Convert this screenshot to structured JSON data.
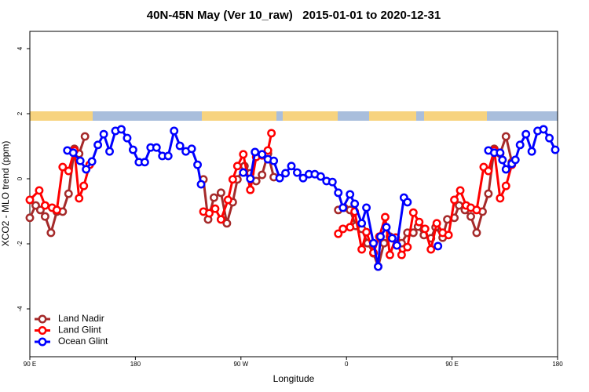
{
  "chart_data": {
    "type": "line",
    "title": "40N-45N May (Ver 10_raw)   2015-01-01 to 2020-12-31",
    "x_label": "Longitude",
    "y_label": "XCO2 - MLO trend (ppm)",
    "xlim": [
      90,
      540
    ],
    "ylim": [
      -5.47,
      4.53
    ],
    "xticks": [
      {
        "value": 90,
        "label": "90 E"
      },
      180,
      {
        "value": 270,
        "label": "90 W"
      },
      {
        "value": 360,
        "label": "0"
      },
      {
        "value": 450,
        "label": "90 E"
      },
      {
        "value": 540,
        "label": "180"
      }
    ],
    "yticks": [
      4,
      2,
      0,
      -2,
      -4
    ],
    "legend": "bottom-left",
    "series": [
      {
        "name": "Land Nadir",
        "color": "#a52a2a",
        "x": [
          90,
          95,
          99,
          103,
          108,
          113,
          118,
          123,
          128,
          132,
          137,
          null,
          238,
          242,
          247,
          253,
          258,
          263,
          267,
          273,
          278,
          283,
          288,
          293,
          298,
          null,
          353,
          358,
          363,
          368,
          373,
          378,
          383,
          387,
          392,
          397,
          402,
          407,
          412,
          417,
          421,
          426,
          432,
          436,
          442,
          446,
          452,
          456,
          461,
          466,
          471,
          476,
          481,
          486,
          491,
          496,
          501
        ],
        "values": [
          -1.2,
          -0.82,
          -0.96,
          -1.16,
          -1.66,
          -1.01,
          -1.01,
          -0.46,
          0.92,
          0.77,
          1.3,
          null,
          -0.02,
          -1.25,
          -0.58,
          -0.43,
          -1.37,
          -0.72,
          -0.02,
          0.39,
          0.17,
          -0.07,
          0.12,
          0.77,
          0.05,
          null,
          -0.96,
          -0.89,
          -0.96,
          -1.45,
          -1.54,
          -1.98,
          -2.29,
          -2.7,
          -1.98,
          -1.78,
          -1.81,
          -1.98,
          -1.66,
          -1.66,
          -1.47,
          -1.73,
          -1.83,
          -1.49,
          -1.81,
          -1.25,
          -1.2,
          -0.82,
          -0.96,
          -1.16,
          -1.66,
          -1.01,
          -0.46,
          0.92,
          0.77,
          1.3,
          0.51
        ]
      },
      {
        "name": "Land Glint",
        "color": "#ff0000",
        "x": [
          90,
          98,
          103,
          109,
          113,
          118,
          123,
          128,
          132,
          136,
          141,
          null,
          238,
          243,
          248,
          253,
          259,
          263,
          267,
          272,
          278,
          283,
          288,
          293,
          296,
          null,
          353,
          357,
          363,
          367,
          373,
          377,
          383,
          388,
          393,
          397,
          402,
          407,
          412,
          417,
          422,
          427,
          432,
          437,
          442,
          447,
          452,
          457,
          462,
          466,
          471,
          477,
          481,
          486,
          491,
          496,
          501
        ],
        "values": [
          -0.65,
          -0.36,
          -0.82,
          -0.89,
          -0.96,
          0.36,
          0.24,
          0.87,
          -0.6,
          -0.22,
          0.43,
          null,
          -1.01,
          -1.06,
          -0.92,
          -1.25,
          -0.65,
          -0.02,
          0.39,
          0.75,
          -0.34,
          0.67,
          0.72,
          0.87,
          1.4,
          null,
          -1.69,
          -1.54,
          -1.49,
          -1.01,
          -2.17,
          -1.64,
          -2.27,
          -1.78,
          -1.18,
          -2.34,
          -1.81,
          -2.34,
          -2.1,
          -1.04,
          -1.33,
          -1.54,
          -2.17,
          -1.37,
          -1.66,
          -1.73,
          -0.65,
          -0.36,
          -0.82,
          -0.89,
          -0.96,
          0.36,
          0.24,
          0.87,
          -0.6,
          -0.22,
          0.43
        ]
      },
      {
        "name": "Ocean Glint",
        "color": "#0000ff",
        "x": [
          122,
          127,
          133,
          138,
          143,
          148,
          153,
          158,
          163,
          168,
          173,
          178,
          183,
          188,
          193,
          198,
          203,
          208,
          213,
          218,
          223,
          228,
          233,
          236,
          null,
          272,
          278,
          282,
          288,
          293,
          298,
          303,
          308,
          313,
          318,
          323,
          328,
          333,
          338,
          343,
          348,
          353,
          357,
          363,
          367,
          373,
          377,
          383,
          387,
          389,
          394,
          399,
          403,
          409,
          412,
          null,
          438,
          null,
          481,
          486,
          491,
          493,
          496,
          501,
          504,
          508,
          513,
          518,
          523,
          528,
          533,
          538
        ],
        "values": [
          0.87,
          0.8,
          0.55,
          0.29,
          0.53,
          1.04,
          1.37,
          0.84,
          1.47,
          1.52,
          1.25,
          0.89,
          0.51,
          0.51,
          0.96,
          0.96,
          0.7,
          0.7,
          1.47,
          1.01,
          0.84,
          0.92,
          0.43,
          -0.17,
          null,
          0.19,
          0,
          0.82,
          0.75,
          0.6,
          0.55,
          0.02,
          0.17,
          0.39,
          0.19,
          0.02,
          0.14,
          0.14,
          0.07,
          -0.07,
          -0.1,
          -0.43,
          -0.89,
          -0.48,
          -0.77,
          -1.37,
          -0.89,
          -1.98,
          -2.7,
          -1.78,
          -1.49,
          -1.83,
          -2.05,
          -0.58,
          -0.72,
          null,
          -2.07,
          null,
          0.87,
          0.8,
          0.8,
          0.58,
          0.29,
          0.46,
          0.58,
          1.04,
          1.37,
          0.84,
          1.47,
          1.52,
          1.25,
          0.89
        ]
      }
    ]
  }
}
